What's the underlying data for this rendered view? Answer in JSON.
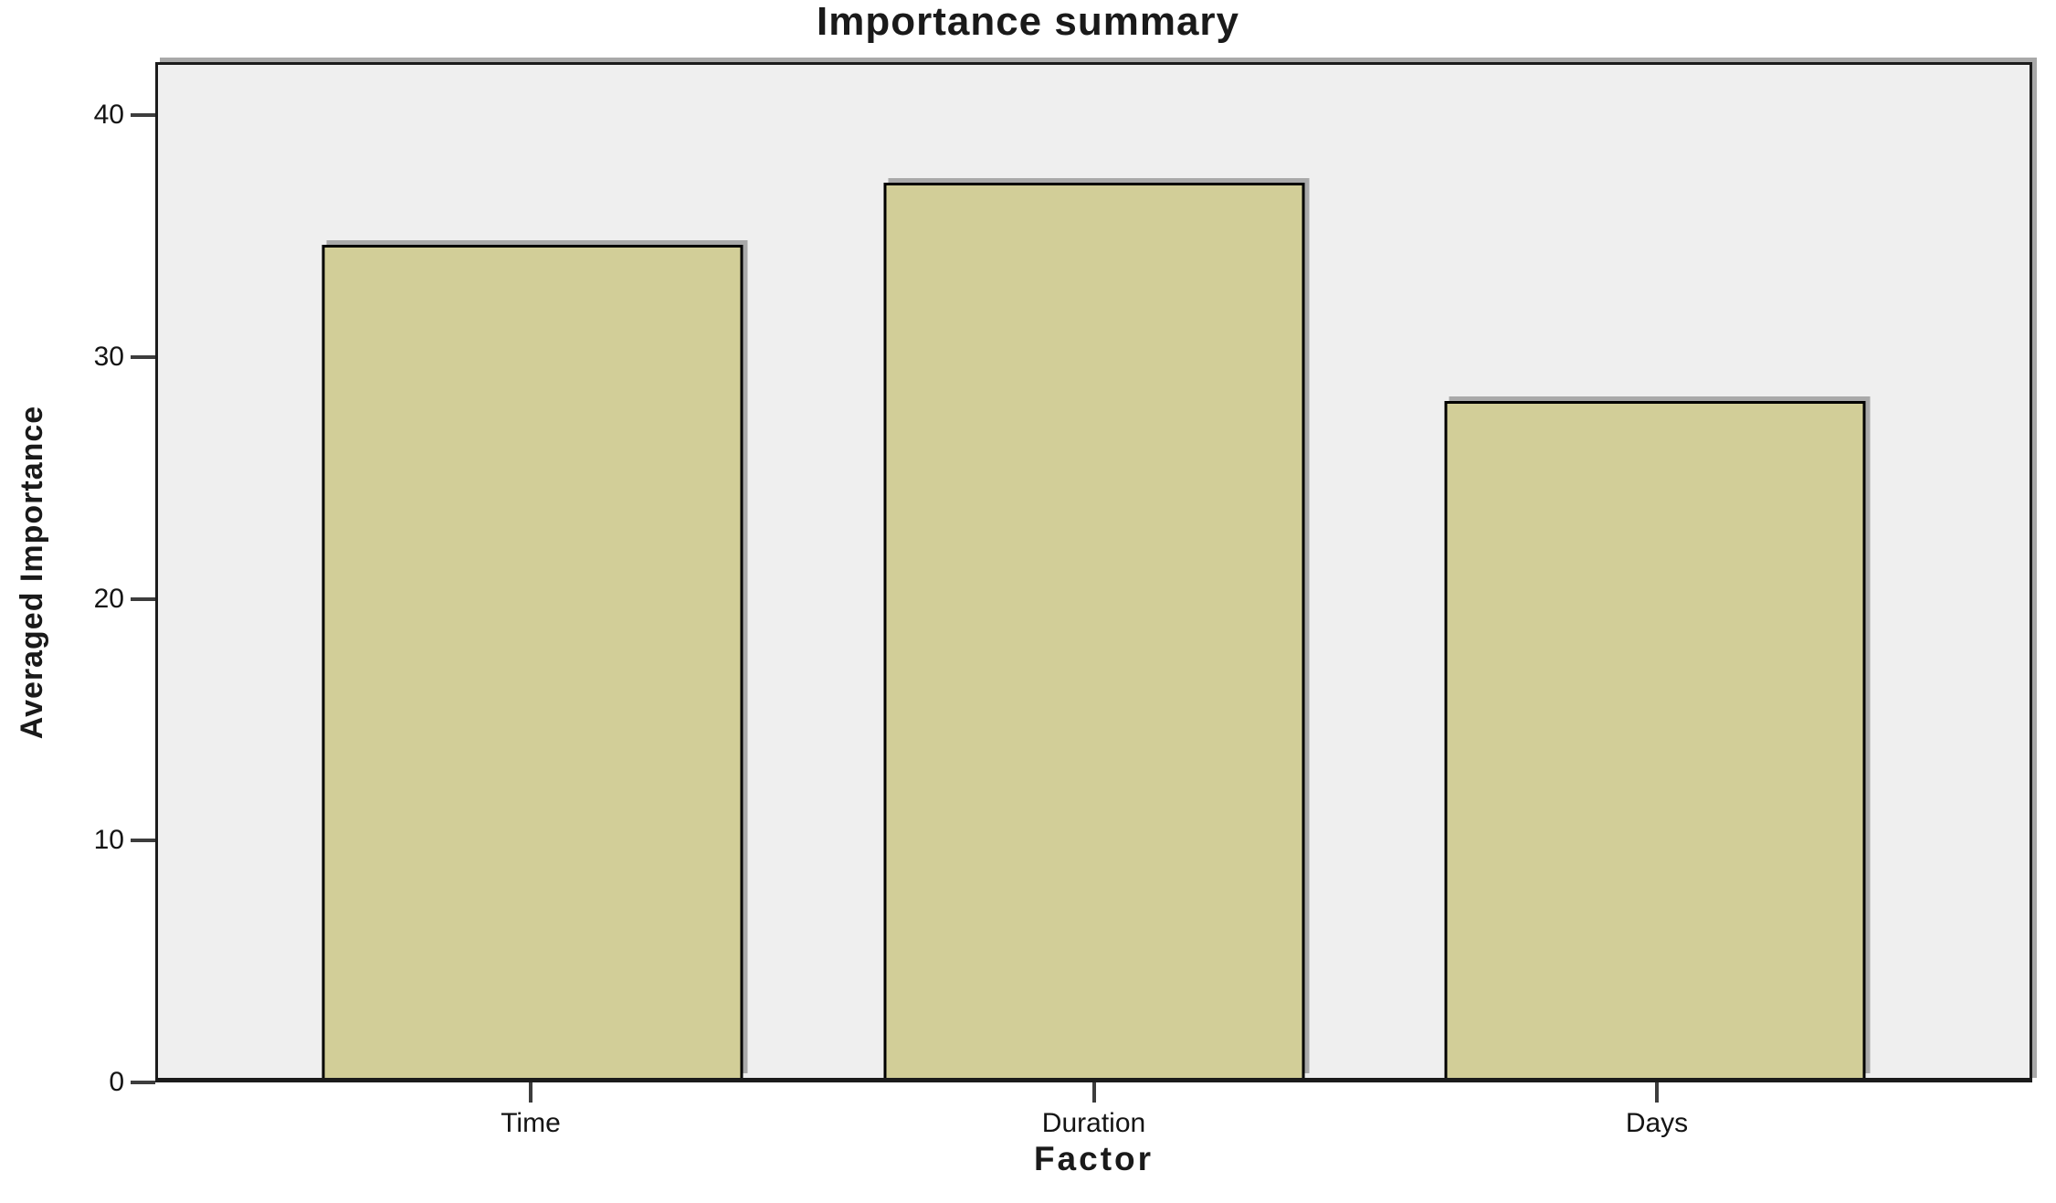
{
  "chart_data": {
    "type": "bar",
    "title": "Importance summary",
    "xlabel": "Factor",
    "ylabel": "Averaged Importance",
    "categories": [
      "Time",
      "Duration",
      "Days"
    ],
    "values": [
      34.7,
      37.3,
      28.2
    ],
    "ylim": [
      0,
      40
    ],
    "yticks": [
      0,
      10,
      20,
      30,
      40
    ],
    "grid": false,
    "legend": "none",
    "colors": {
      "bar_fill": "#d2ce98",
      "bar_border": "#000000",
      "plot_background": "#efefef",
      "figure_background": "#ffffff",
      "frame_border": "#1b1b1b",
      "shadow": "#a9a9a9",
      "tick": "#3d3d3d",
      "text": "#1a1a1a"
    }
  }
}
